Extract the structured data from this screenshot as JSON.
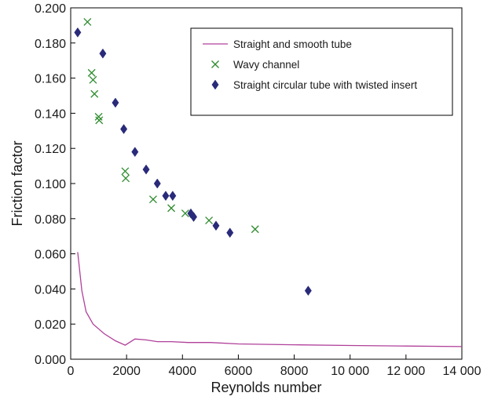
{
  "chart_data": {
    "type": "line+scatter",
    "xlabel": "Reynolds number",
    "ylabel": "Friction factor",
    "xlim": [
      0,
      14000
    ],
    "ylim": [
      0.0,
      0.2
    ],
    "x_ticks": [
      0,
      2000,
      4000,
      6000,
      8000,
      10000,
      12000,
      14000
    ],
    "x_tick_labels": [
      "0",
      "2000",
      "4000",
      "6000",
      "8000",
      "10 000",
      "12 000",
      "14 000"
    ],
    "y_ticks": [
      0.0,
      0.02,
      0.04,
      0.06,
      0.08,
      0.1,
      0.12,
      0.14,
      0.16,
      0.18,
      0.2
    ],
    "y_tick_labels": [
      "0.000",
      "0.020",
      "0.040",
      "0.060",
      "0.080",
      "0.100",
      "0.120",
      "0.140",
      "0.160",
      "0.180",
      "0.200"
    ],
    "grid": false,
    "legend_position": "top-right",
    "series": [
      {
        "name": "Straight and smooth tube",
        "kind": "line",
        "color": "#b0409a",
        "points": [
          [
            250,
            0.061
          ],
          [
            400,
            0.039
          ],
          [
            550,
            0.027
          ],
          [
            800,
            0.02
          ],
          [
            1200,
            0.0145
          ],
          [
            1600,
            0.0105
          ],
          [
            1950,
            0.008
          ],
          [
            2300,
            0.0115
          ],
          [
            2700,
            0.011
          ],
          [
            3100,
            0.01
          ],
          [
            3600,
            0.01
          ],
          [
            4200,
            0.0095
          ],
          [
            5000,
            0.0095
          ],
          [
            6000,
            0.0087
          ],
          [
            8000,
            0.0082
          ],
          [
            10000,
            0.0078
          ],
          [
            12000,
            0.0075
          ],
          [
            14000,
            0.0072
          ]
        ]
      },
      {
        "name": "Wavy channel",
        "kind": "cross",
        "color": "#2e8b2e",
        "points": [
          [
            600,
            0.192
          ],
          [
            750,
            0.163
          ],
          [
            800,
            0.159
          ],
          [
            850,
            0.151
          ],
          [
            1000,
            0.138
          ],
          [
            1020,
            0.136
          ],
          [
            1950,
            0.107
          ],
          [
            1970,
            0.103
          ],
          [
            2950,
            0.091
          ],
          [
            3600,
            0.086
          ],
          [
            4100,
            0.083
          ],
          [
            4950,
            0.079
          ],
          [
            6600,
            0.074
          ]
        ]
      },
      {
        "name": "Straight circular tube with twisted insert",
        "kind": "diamond",
        "color": "#2a2a7a",
        "points": [
          [
            250,
            0.186
          ],
          [
            1150,
            0.174
          ],
          [
            1600,
            0.146
          ],
          [
            1900,
            0.131
          ],
          [
            2300,
            0.118
          ],
          [
            2700,
            0.108
          ],
          [
            3100,
            0.1
          ],
          [
            3400,
            0.093
          ],
          [
            3650,
            0.093
          ],
          [
            4300,
            0.083
          ],
          [
            4400,
            0.081
          ],
          [
            5200,
            0.076
          ],
          [
            5700,
            0.072
          ],
          [
            8500,
            0.039
          ]
        ]
      }
    ]
  }
}
